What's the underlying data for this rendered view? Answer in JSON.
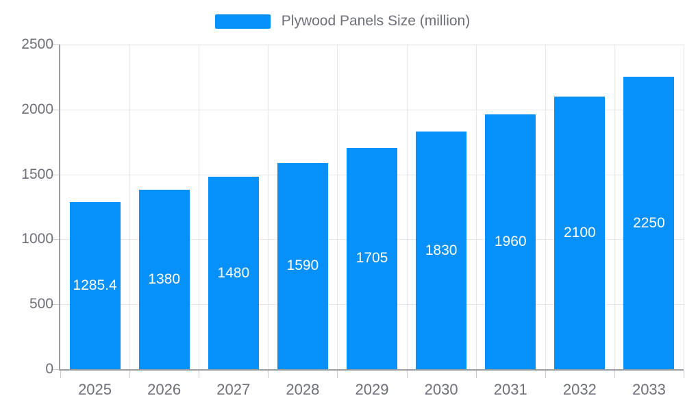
{
  "chart_data": {
    "type": "bar",
    "series_name": "Plywood Panels Size (million)",
    "categories": [
      "2025",
      "2026",
      "2027",
      "2028",
      "2029",
      "2030",
      "2031",
      "2032",
      "2033"
    ],
    "values": [
      1285.4,
      1380,
      1480,
      1590,
      1705,
      1830,
      1960,
      2100,
      2250
    ],
    "ylim": [
      0,
      2500
    ],
    "yticks": [
      0,
      500,
      1000,
      1500,
      2000,
      2500
    ],
    "grid": true,
    "legend_position": "top-center",
    "value_labels_position": "inside-center",
    "colors": {
      "bar": "#0691fa",
      "value_label": "#ffffff",
      "axis_text": "#6e7079",
      "gridline": "#e4e7ec",
      "axis_line": "#9b9fa3",
      "tick": "#c9c9c9",
      "background": "#ffffff"
    }
  }
}
